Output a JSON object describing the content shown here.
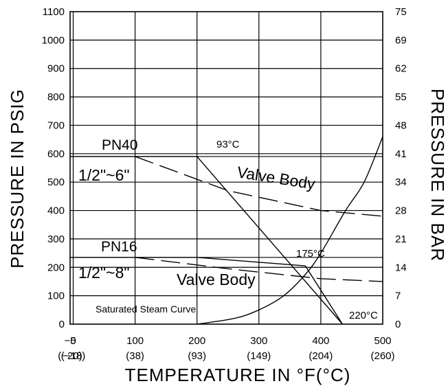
{
  "chart_data": {
    "type": "line",
    "xlabel": "TEMPERATURE IN °F(°C)",
    "ylabel_left": "PRESSURE IN PSIG",
    "ylabel_right": "PRESSURE IN BAR",
    "xlim": [
      -5,
      500
    ],
    "ylim": [
      0,
      1100
    ],
    "grid": true,
    "x_ticks": [
      {
        "value": -5,
        "label": "−5",
        "sub": "(−20)"
      },
      {
        "value": 0,
        "label": "0",
        "sub": "(−18)"
      },
      {
        "value": 100,
        "label": "100",
        "sub": "(38)"
      },
      {
        "value": 200,
        "label": "200",
        "sub": "(93)"
      },
      {
        "value": 300,
        "label": "300",
        "sub": "(149)"
      },
      {
        "value": 400,
        "label": "400",
        "sub": "(204)"
      },
      {
        "value": 500,
        "label": "500",
        "sub": "(260)"
      }
    ],
    "y_ticks_left": [
      {
        "value": 0,
        "label": "0"
      },
      {
        "value": 100,
        "label": "100"
      },
      {
        "value": 200,
        "label": "200"
      },
      {
        "value": 300,
        "label": "300"
      },
      {
        "value": 400,
        "label": "400"
      },
      {
        "value": 500,
        "label": "500"
      },
      {
        "value": 600,
        "label": "600"
      },
      {
        "value": 700,
        "label": "700"
      },
      {
        "value": 800,
        "label": "800"
      },
      {
        "value": 900,
        "label": "900"
      },
      {
        "value": 1000,
        "label": "1000"
      },
      {
        "value": 1100,
        "label": "1100"
      }
    ],
    "y_ticks_right": [
      {
        "value": 0,
        "label": "0"
      },
      {
        "value": 100,
        "label": "7"
      },
      {
        "value": 200,
        "label": "14"
      },
      {
        "value": 300,
        "label": "21"
      },
      {
        "value": 400,
        "label": "28"
      },
      {
        "value": 500,
        "label": "34"
      },
      {
        "value": 600,
        "label": "41"
      },
      {
        "value": 700,
        "label": "48"
      },
      {
        "value": 800,
        "label": "55"
      },
      {
        "value": 900,
        "label": "62"
      },
      {
        "value": 1000,
        "label": "69"
      },
      {
        "value": 1100,
        "label": "75"
      }
    ],
    "series": [
      {
        "name": "PN40 1/2\"~6\"",
        "style": "solid",
        "points": [
          [
            -5,
            590
          ],
          [
            200,
            590
          ],
          [
            435,
            0
          ]
        ]
      },
      {
        "name": "PN40 Valve Body",
        "style": "dashed",
        "points": [
          [
            100,
            590
          ],
          [
            250,
            470
          ],
          [
            400,
            400
          ],
          [
            500,
            380
          ]
        ]
      },
      {
        "name": "PN16 1/2\"~8\"",
        "style": "solid",
        "points": [
          [
            -5,
            235
          ],
          [
            200,
            235
          ],
          [
            375,
            205
          ],
          [
            435,
            0
          ]
        ]
      },
      {
        "name": "PN16 Valve Body",
        "style": "dashed",
        "points": [
          [
            100,
            235
          ],
          [
            250,
            195
          ],
          [
            400,
            160
          ],
          [
            500,
            150
          ]
        ]
      },
      {
        "name": "Saturated Steam Curve",
        "style": "solid",
        "points": [
          [
            200,
            0
          ],
          [
            260,
            20
          ],
          [
            300,
            50
          ],
          [
            340,
            100
          ],
          [
            375,
            175
          ],
          [
            400,
            250
          ],
          [
            440,
            400
          ],
          [
            470,
            500
          ],
          [
            500,
            660
          ]
        ]
      }
    ],
    "gridlines_y": [
      0,
      100,
      200,
      235,
      300,
      400,
      500,
      590,
      600,
      700,
      800,
      900,
      1000,
      1100
    ],
    "annotations": {
      "pn40": "PN40",
      "pn40_size": "1/2\"~6\"",
      "pn40_body": "Valve Body",
      "pn16": "PN16",
      "pn16_size": "1/2\"~8\"",
      "pn16_body": "Valve Body",
      "t93": "93°C",
      "t175": "175°C",
      "t220": "220°C",
      "steam": "Saturated Steam Curve"
    }
  }
}
